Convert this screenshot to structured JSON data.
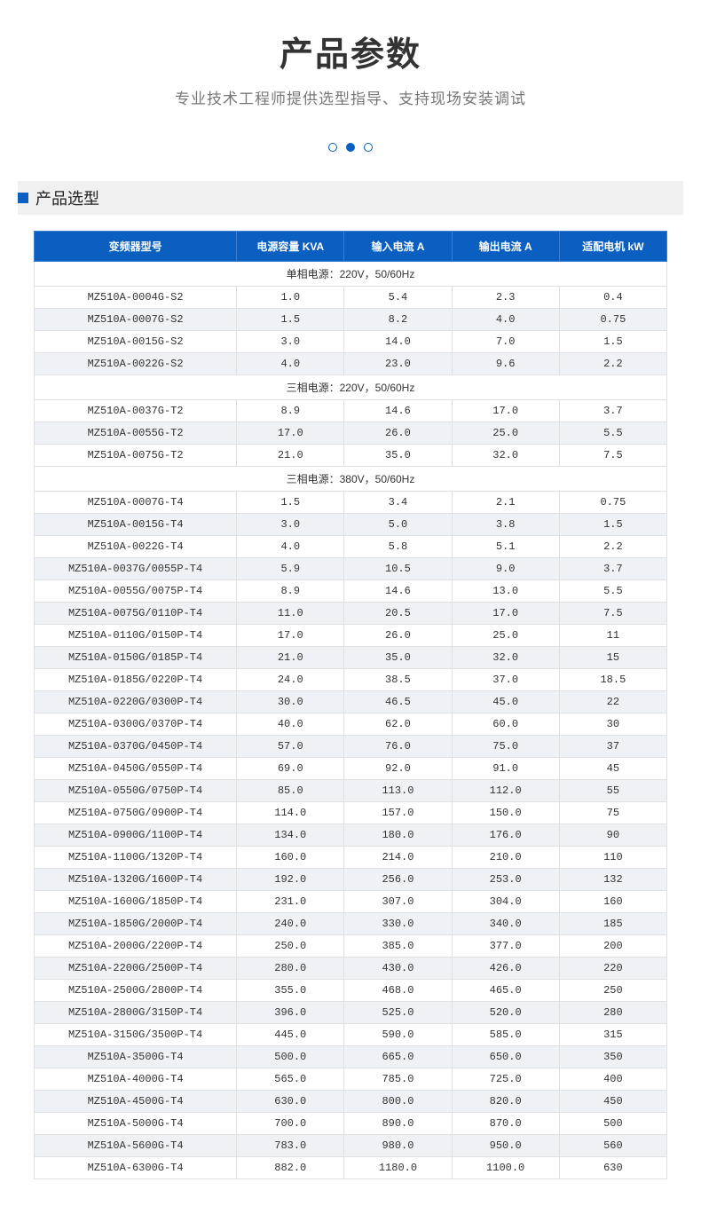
{
  "colors": {
    "primary": "#0a5fc0",
    "header_border": "#3a7fd0",
    "row_border": "#e0e0e0",
    "even_bg": "#eef1f5",
    "odd_bg": "#ffffff",
    "section_bg": "#f0f0f0",
    "title_color": "#333333",
    "subtitle_color": "#777777"
  },
  "typography": {
    "title_size": 38,
    "subtitle_size": 17,
    "section_size": 18,
    "table_size": 12
  },
  "title": "产品参数",
  "subtitle": "专业技术工程师提供选型指导、支持现场安装调试",
  "dots": {
    "total": 3,
    "active_index": 1
  },
  "section_label": "产品选型",
  "table": {
    "columns": [
      "变频器型号",
      "电源容量 KVA",
      "输入电流 A",
      "输出电流 A",
      "适配电机 kW"
    ],
    "groups": [
      {
        "label": "单相电源：220V，50/60Hz",
        "rows": [
          [
            "MZ510A-0004G-S2",
            "1.0",
            "5.4",
            "2.3",
            "0.4"
          ],
          [
            "MZ510A-0007G-S2",
            "1.5",
            "8.2",
            "4.0",
            "0.75"
          ],
          [
            "MZ510A-0015G-S2",
            "3.0",
            "14.0",
            "7.0",
            "1.5"
          ],
          [
            "MZ510A-0022G-S2",
            "4.0",
            "23.0",
            "9.6",
            "2.2"
          ]
        ]
      },
      {
        "label": "三相电源：220V，50/60Hz",
        "rows": [
          [
            "MZ510A-0037G-T2",
            "8.9",
            "14.6",
            "17.0",
            "3.7"
          ],
          [
            "MZ510A-0055G-T2",
            "17.0",
            "26.0",
            "25.0",
            "5.5"
          ],
          [
            "MZ510A-0075G-T2",
            "21.0",
            "35.0",
            "32.0",
            "7.5"
          ]
        ]
      },
      {
        "label": "三相电源：380V，50/60Hz",
        "rows": [
          [
            "MZ510A-0007G-T4",
            "1.5",
            "3.4",
            "2.1",
            "0.75"
          ],
          [
            "MZ510A-0015G-T4",
            "3.0",
            "5.0",
            "3.8",
            "1.5"
          ],
          [
            "MZ510A-0022G-T4",
            "4.0",
            "5.8",
            "5.1",
            "2.2"
          ],
          [
            "MZ510A-0037G/0055P-T4",
            "5.9",
            "10.5",
            "9.0",
            "3.7"
          ],
          [
            "MZ510A-0055G/0075P-T4",
            "8.9",
            "14.6",
            "13.0",
            "5.5"
          ],
          [
            "MZ510A-0075G/0110P-T4",
            "11.0",
            "20.5",
            "17.0",
            "7.5"
          ],
          [
            "MZ510A-0110G/0150P-T4",
            "17.0",
            "26.0",
            "25.0",
            "11"
          ],
          [
            "MZ510A-0150G/0185P-T4",
            "21.0",
            "35.0",
            "32.0",
            "15"
          ],
          [
            "MZ510A-0185G/0220P-T4",
            "24.0",
            "38.5",
            "37.0",
            "18.5"
          ],
          [
            "MZ510A-0220G/0300P-T4",
            "30.0",
            "46.5",
            "45.0",
            "22"
          ],
          [
            "MZ510A-0300G/0370P-T4",
            "40.0",
            "62.0",
            "60.0",
            "30"
          ],
          [
            "MZ510A-0370G/0450P-T4",
            "57.0",
            "76.0",
            "75.0",
            "37"
          ],
          [
            "MZ510A-0450G/0550P-T4",
            "69.0",
            "92.0",
            "91.0",
            "45"
          ],
          [
            "MZ510A-0550G/0750P-T4",
            "85.0",
            "113.0",
            "112.0",
            "55"
          ],
          [
            "MZ510A-0750G/0900P-T4",
            "114.0",
            "157.0",
            "150.0",
            "75"
          ],
          [
            "MZ510A-0900G/1100P-T4",
            "134.0",
            "180.0",
            "176.0",
            "90"
          ],
          [
            "MZ510A-1100G/1320P-T4",
            "160.0",
            "214.0",
            "210.0",
            "110"
          ],
          [
            "MZ510A-1320G/1600P-T4",
            "192.0",
            "256.0",
            "253.0",
            "132"
          ],
          [
            "MZ510A-1600G/1850P-T4",
            "231.0",
            "307.0",
            "304.0",
            "160"
          ],
          [
            "MZ510A-1850G/2000P-T4",
            "240.0",
            "330.0",
            "340.0",
            "185"
          ],
          [
            "MZ510A-2000G/2200P-T4",
            "250.0",
            "385.0",
            "377.0",
            "200"
          ],
          [
            "MZ510A-2200G/2500P-T4",
            "280.0",
            "430.0",
            "426.0",
            "220"
          ],
          [
            "MZ510A-2500G/2800P-T4",
            "355.0",
            "468.0",
            "465.0",
            "250"
          ],
          [
            "MZ510A-2800G/3150P-T4",
            "396.0",
            "525.0",
            "520.0",
            "280"
          ],
          [
            "MZ510A-3150G/3500P-T4",
            "445.0",
            "590.0",
            "585.0",
            "315"
          ],
          [
            "MZ510A-3500G-T4",
            "500.0",
            "665.0",
            "650.0",
            "350"
          ],
          [
            "MZ510A-4000G-T4",
            "565.0",
            "785.0",
            "725.0",
            "400"
          ],
          [
            "MZ510A-4500G-T4",
            "630.0",
            "800.0",
            "820.0",
            "450"
          ],
          [
            "MZ510A-5000G-T4",
            "700.0",
            "890.0",
            "870.0",
            "500"
          ],
          [
            "MZ510A-5600G-T4",
            "783.0",
            "980.0",
            "950.0",
            "560"
          ],
          [
            "MZ510A-6300G-T4",
            "882.0",
            "1180.0",
            "1100.0",
            "630"
          ]
        ]
      }
    ]
  }
}
